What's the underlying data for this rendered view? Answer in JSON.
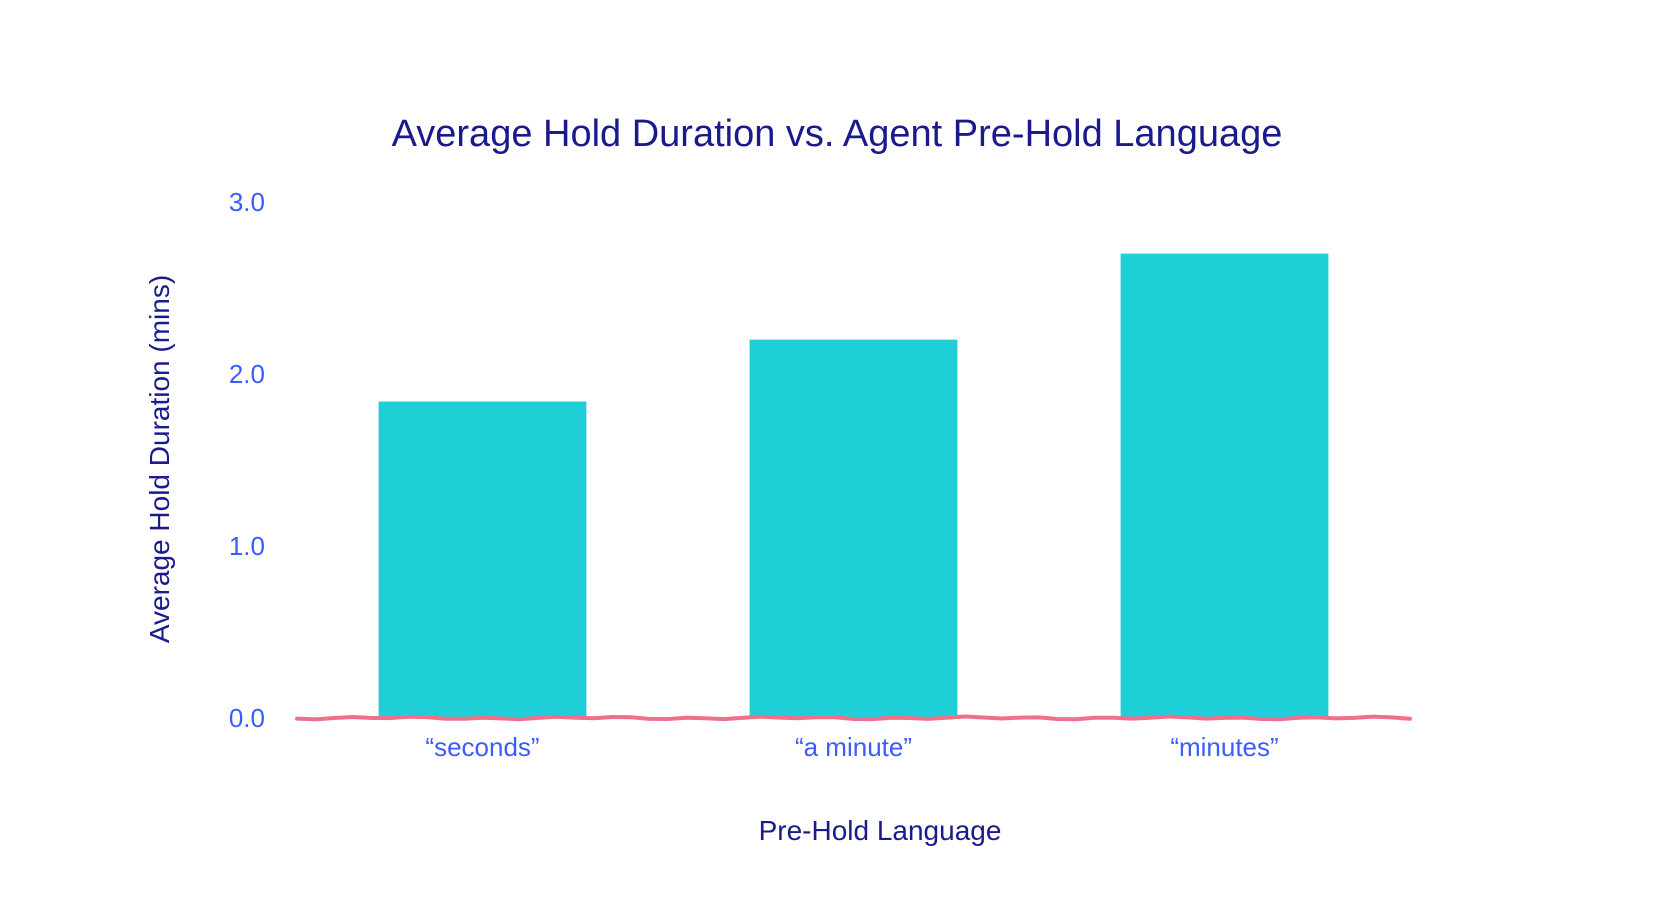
{
  "colors": {
    "title": "#1a1a8c",
    "tick_label": "#3d5cff",
    "bar": "#1ecfd8",
    "baseline": "#f0708c",
    "background": "#ffffff"
  },
  "chart_data": {
    "type": "bar",
    "title": "Average Hold Duration vs. Agent Pre-Hold Language",
    "xlabel": "Pre-Hold Language",
    "ylabel": "Average Hold Duration (mins)",
    "categories": [
      "“seconds”",
      "“a minute”",
      "“minutes”"
    ],
    "values": [
      1.84,
      2.2,
      2.7
    ],
    "ylim": [
      0,
      3
    ],
    "yticks": [
      0,
      1,
      2,
      3
    ],
    "ytick_labels": [
      "0.0",
      "1.0",
      "2.0",
      "3.0"
    ],
    "grid": false,
    "legend": "none"
  }
}
